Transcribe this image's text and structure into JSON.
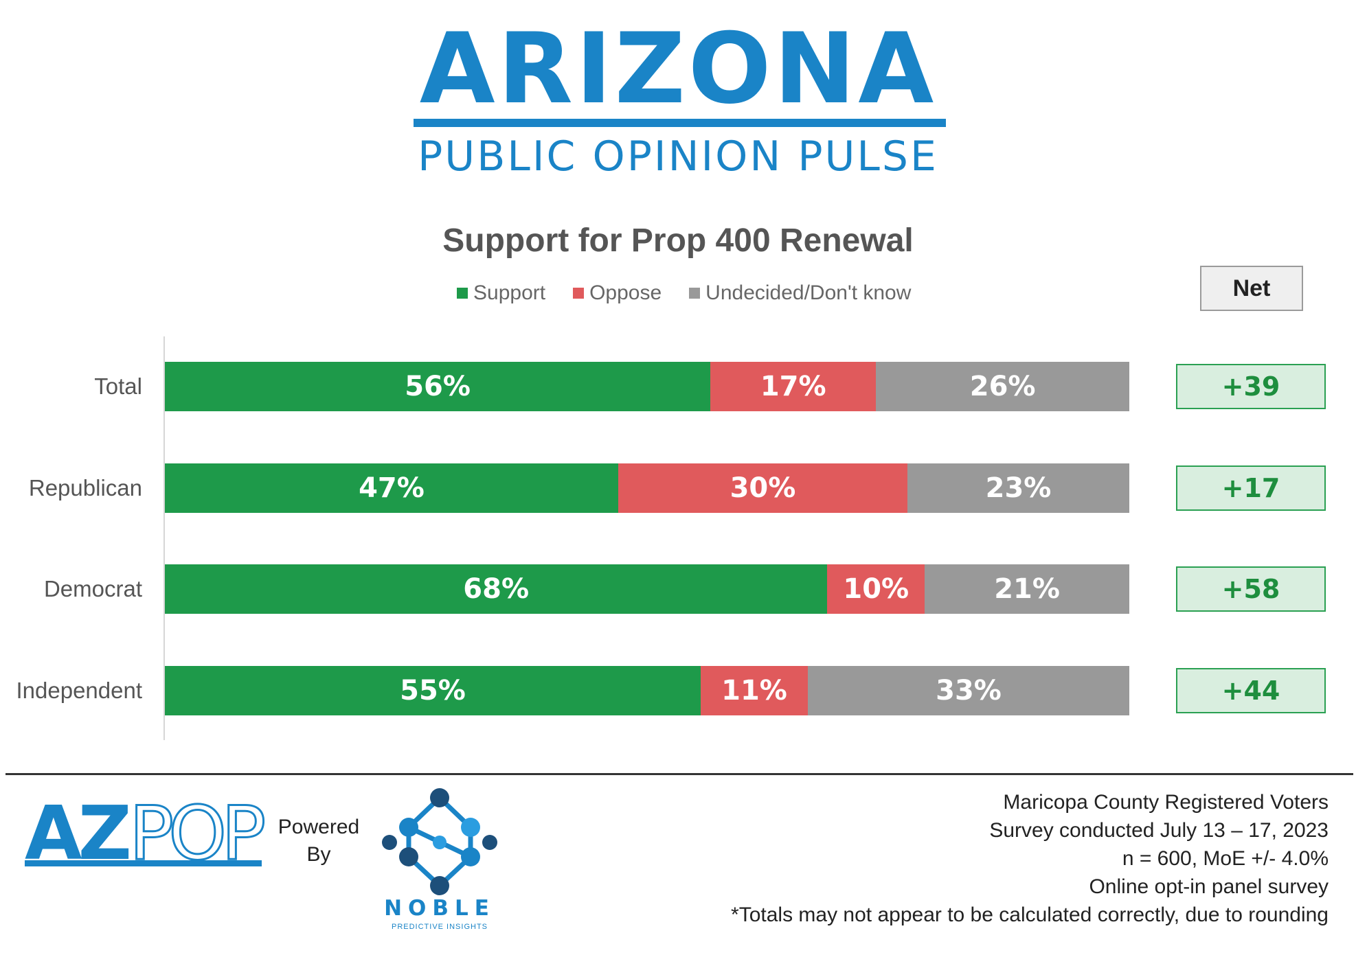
{
  "header": {
    "title": "ARIZONA",
    "subtitle": "PUBLIC OPINION PULSE",
    "brand_color": "#1a84c7"
  },
  "chart_data": {
    "type": "bar",
    "orientation": "horizontal-stacked",
    "title": "Support for Prop 400 Renewal",
    "categories": [
      "Total",
      "Republican",
      "Democrat",
      "Independent"
    ],
    "series": [
      {
        "name": "Support",
        "color": "#1e9a4a",
        "values": [
          56,
          47,
          68,
          55
        ],
        "labels": [
          "56%",
          "47%",
          "68%",
          "55%"
        ]
      },
      {
        "name": "Oppose",
        "color": "#e05a5c",
        "values": [
          17,
          30,
          10,
          11
        ],
        "labels": [
          "17%",
          "30%",
          "10%",
          "11%"
        ]
      },
      {
        "name": "Undecided/Don't know",
        "color": "#999999",
        "values": [
          26,
          23,
          21,
          33
        ],
        "labels": [
          "26%",
          "23%",
          "21%",
          "33%"
        ]
      }
    ],
    "net": {
      "header": "Net",
      "values": [
        "+39",
        "+17",
        "+58",
        "+44"
      ]
    },
    "xlim": [
      0,
      100
    ],
    "legend_position": "top-center"
  },
  "footer": {
    "logo_text": "AZPOP",
    "powered_line1": "Powered",
    "powered_line2": "By",
    "noble_name": "NOBLE",
    "noble_tagline": "PREDICTIVE INSIGHTS",
    "notes": [
      "Maricopa County Registered Voters",
      "Survey conducted July 13 – 17, 2023",
      "n = 600, MoE +/- 4.0%",
      "Online opt-in panel survey",
      "*Totals may not appear to be calculated correctly, due to rounding"
    ]
  }
}
